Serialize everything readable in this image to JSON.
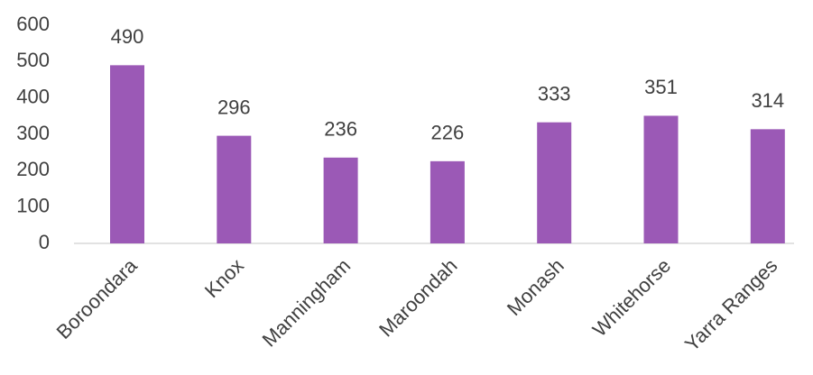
{
  "chart_data": {
    "type": "bar",
    "categories": [
      "Boroondara",
      "Knox",
      "Manningham",
      "Maroondah",
      "Monash",
      "Whitehorse",
      "Yarra Ranges"
    ],
    "values": [
      490,
      296,
      236,
      226,
      333,
      351,
      314
    ],
    "color": "#9b59b6",
    "ylim": [
      0,
      600
    ],
    "yticks": [
      0,
      100,
      200,
      300,
      400,
      500,
      600
    ],
    "grid": false
  }
}
